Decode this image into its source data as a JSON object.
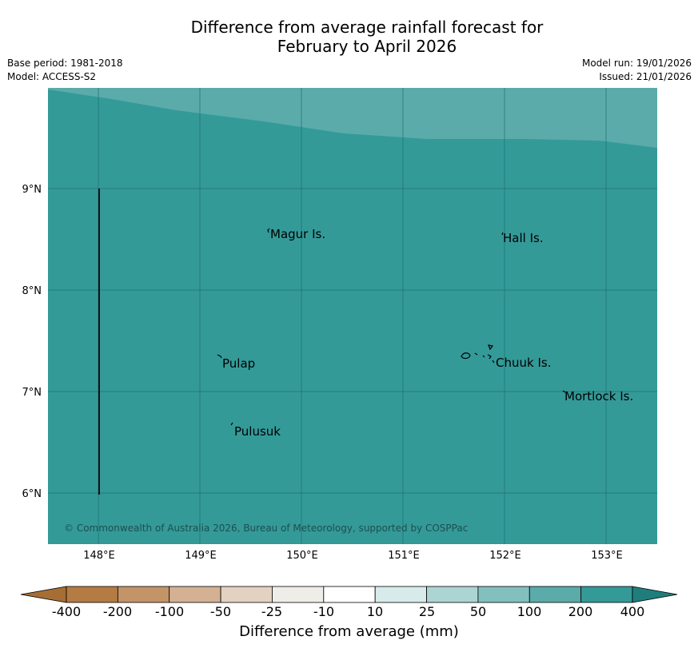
{
  "title": {
    "line1": "Difference from average rainfall forecast for",
    "line2": "February to April 2026"
  },
  "meta_left": {
    "base_period": "Base period: 1981-2018",
    "model": "Model: ACCESS-S2"
  },
  "meta_right": {
    "model_run": "Model run: 19/01/2026",
    "issued": "Issued: 21/01/2026"
  },
  "map": {
    "lon_ticks": [
      "148°E",
      "149°E",
      "150°E",
      "151°E",
      "152°E",
      "153°E"
    ],
    "lat_ticks": [
      "9°N",
      "8°N",
      "7°N",
      "6°N"
    ],
    "places": {
      "magur": "Magur Is.",
      "hall": "Hall Is.",
      "pulap": "Pulap",
      "chuuk": "Chuuk Is.",
      "mortlock": "Mortlock Is.",
      "pulusuk": "Pulusuk"
    },
    "copyright": "© Commonwealth of Australia 2026, Bureau of Meteorology, supported by COSPPac",
    "colors": {
      "main_fill": "#339a98",
      "upper_fill": "#5aabaa",
      "grid": "#1f6f6d"
    }
  },
  "colorbar": {
    "tick_labels": [
      "-400",
      "-200",
      "-100",
      "-50",
      "-25",
      "-10",
      "10",
      "25",
      "50",
      "100",
      "200",
      "400"
    ],
    "colors": [
      "#a66e35",
      "#b47b43",
      "#c39468",
      "#d3b192",
      "#e3d1c1",
      "#efede8",
      "#ffffff",
      "#d6ebea",
      "#acd4d3",
      "#82c0be",
      "#5aabaa",
      "#339a98",
      "#1f7e7c"
    ],
    "label": "Difference from average (mm)"
  }
}
